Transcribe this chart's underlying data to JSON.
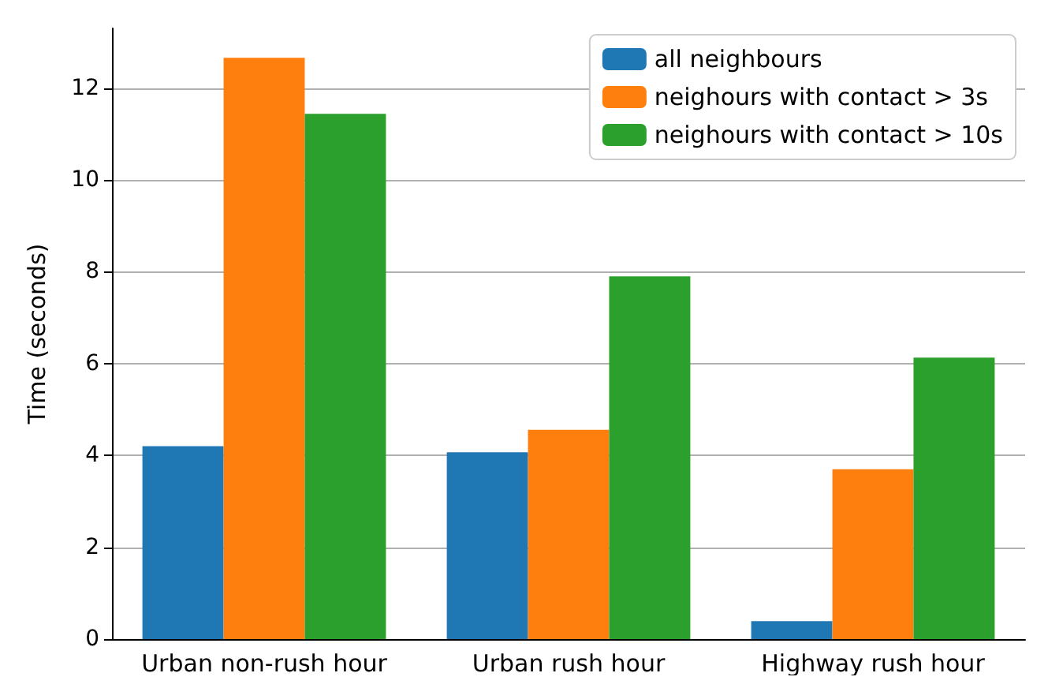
{
  "chart_data": {
    "type": "bar",
    "ylabel": "Time (seconds)",
    "categories": [
      "Urban non-rush hour",
      "Urban rush hour",
      "Highway rush hour"
    ],
    "series": [
      {
        "name": "all neighbours",
        "color": "#1f77b4",
        "values": [
          4.2,
          4.07,
          0.39
        ]
      },
      {
        "name": "neighours with contact > 3s",
        "color": "#ff7f0e",
        "values": [
          12.66,
          4.56,
          3.7
        ]
      },
      {
        "name": "neighours with contact > 10s",
        "color": "#2ca02c",
        "values": [
          11.44,
          7.9,
          6.13
        ]
      }
    ],
    "ylim": [
      0,
      13.3
    ],
    "yticks": [
      0,
      2,
      4,
      6,
      8,
      10,
      12
    ],
    "grid": "y",
    "legend": "top right"
  }
}
